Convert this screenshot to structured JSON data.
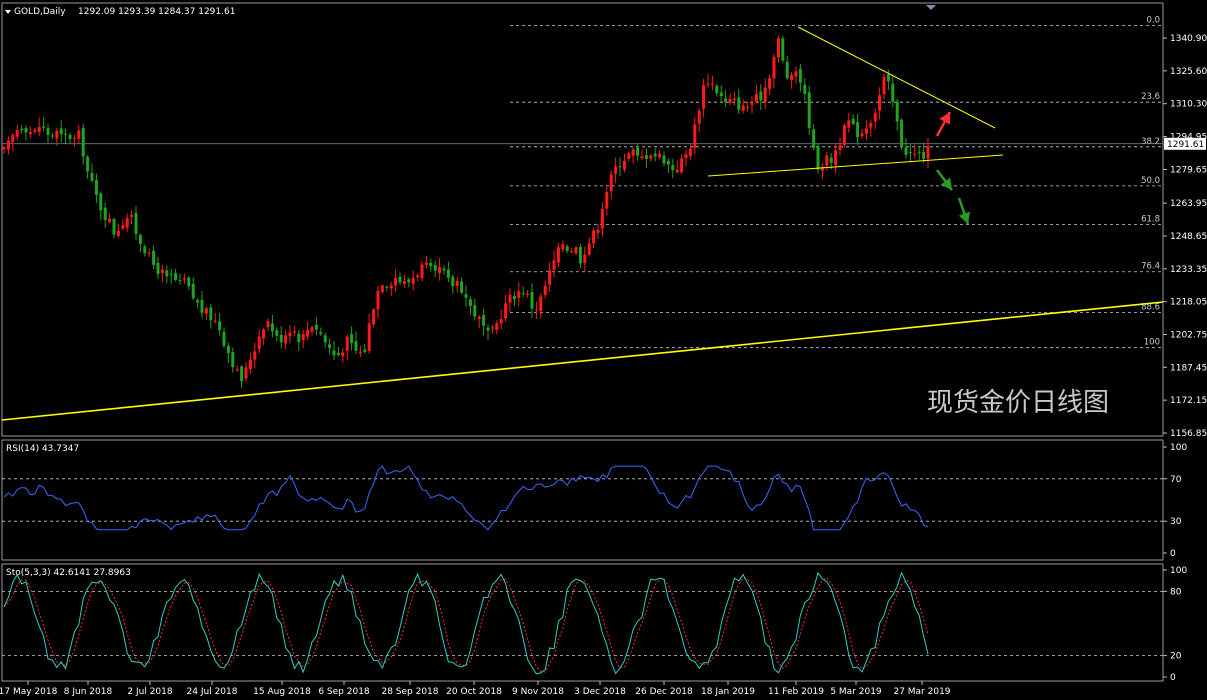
{
  "header": {
    "symbol_label": "GOLD,Daily",
    "ohlc_label": "1292.09 1293.39 1284.37 1291.61"
  },
  "rsi_panel": {
    "label": "RSI(14) 43.7347"
  },
  "sto_panel": {
    "label": "Sto(5,3,3) 42.6141 27.8963"
  },
  "watermark": "现货金价日线图",
  "colors": {
    "background": "#000000",
    "bull": "#ff1a1a",
    "bear": "#1fa51f",
    "trendline": "#ffff00",
    "rsi": "#3a67ff",
    "sto_main": "#2ad1c5",
    "sto_signal": "#ff2a2a",
    "arrow_up": "#ff3030",
    "arrow_down": "#2a9a2a"
  },
  "chart_data": [
    {
      "type": "candlestick",
      "title": "",
      "ylim": [
        1156.85,
        1351.0
      ],
      "y_ticks": [
        "1340.90",
        "1325.60",
        "1310.30",
        "1294.95",
        "1279.65",
        "1263.95",
        "1248.65",
        "1233.35",
        "1218.05",
        "1202.75",
        "1187.45",
        "1172.15",
        "1156.85"
      ],
      "x_ticks": [
        "17 May 2018",
        "8 Jun 2018",
        "2 Jul 2018",
        "24 Jul 2018",
        "15 Aug 2018",
        "6 Sep 2018",
        "28 Sep 2018",
        "20 Oct 2018",
        "9 Nov 2018",
        "3 Dec 2018",
        "26 Dec 2018",
        "18 Jan 2019",
        "11 Feb 2019",
        "5 Mar 2019",
        "27 Mar 2019"
      ],
      "current_price": "1291.61",
      "fibonacci_levels": [
        {
          "label": "0.0",
          "price": 1346.8
        },
        {
          "label": "23.6",
          "price": 1311.0
        },
        {
          "label": "38.2",
          "price": 1290.2
        },
        {
          "label": "50.0",
          "price": 1272.0
        },
        {
          "label": "61.8",
          "price": 1254.0
        },
        {
          "label": "76.4",
          "price": 1232.0
        },
        {
          "label": "88.6",
          "price": 1213.0
        },
        {
          "label": "100",
          "price": 1196.6
        }
      ],
      "close_path": [
        [
          0,
          1288
        ],
        [
          5,
          1292
        ],
        [
          10,
          1298
        ],
        [
          15,
          1300
        ],
        [
          20,
          1299
        ],
        [
          25,
          1296
        ],
        [
          30,
          1300
        ],
        [
          35,
          1298
        ],
        [
          40,
          1295
        ],
        [
          45,
          1297
        ],
        [
          50,
          1294
        ],
        [
          55,
          1296
        ],
        [
          60,
          1293
        ],
        [
          63,
          1298
        ],
        [
          68,
          1288
        ],
        [
          72,
          1278
        ],
        [
          76,
          1272
        ],
        [
          80,
          1266
        ],
        [
          85,
          1260
        ],
        [
          90,
          1256
        ],
        [
          95,
          1250
        ],
        [
          100,
          1254
        ],
        [
          105,
          1258
        ],
        [
          110,
          1256
        ],
        [
          115,
          1248
        ],
        [
          120,
          1244
        ],
        [
          125,
          1238
        ],
        [
          130,
          1234
        ],
        [
          135,
          1232
        ],
        [
          140,
          1228
        ],
        [
          145,
          1230
        ],
        [
          150,
          1225
        ],
        [
          155,
          1228
        ],
        [
          160,
          1222
        ],
        [
          165,
          1218
        ],
        [
          170,
          1214
        ],
        [
          175,
          1212
        ],
        [
          180,
          1210
        ],
        [
          185,
          1206
        ],
        [
          190,
          1198
        ],
        [
          195,
          1192
        ],
        [
          200,
          1185
        ],
        [
          205,
          1181
        ],
        [
          210,
          1190
        ],
        [
          215,
          1196
        ],
        [
          220,
          1204
        ],
        [
          225,
          1210
        ],
        [
          230,
          1206
        ],
        [
          235,
          1200
        ],
        [
          240,
          1202
        ],
        [
          245,
          1206
        ],
        [
          250,
          1204
        ],
        [
          255,
          1200
        ],
        [
          260,
          1205
        ],
        [
          265,
          1208
        ],
        [
          270,
          1205
        ],
        [
          275,
          1200
        ],
        [
          280,
          1196
        ],
        [
          285,
          1192
        ],
        [
          290,
          1196
        ],
        [
          295,
          1200
        ],
        [
          300,
          1196
        ],
        [
          305,
          1194
        ],
        [
          310,
          1196
        ],
        [
          315,
          1212
        ],
        [
          320,
          1222
        ],
        [
          325,
          1228
        ],
        [
          330,
          1226
        ],
        [
          335,
          1230
        ],
        [
          340,
          1228
        ],
        [
          345,
          1226
        ],
        [
          350,
          1229
        ],
        [
          355,
          1232
        ],
        [
          360,
          1235
        ],
        [
          365,
          1233
        ],
        [
          370,
          1230
        ],
        [
          375,
          1234
        ],
        [
          380,
          1228
        ],
        [
          385,
          1226
        ],
        [
          390,
          1228
        ],
        [
          395,
          1222
        ],
        [
          400,
          1216
        ],
        [
          405,
          1212
        ],
        [
          410,
          1208
        ],
        [
          415,
          1202
        ],
        [
          420,
          1204
        ],
        [
          425,
          1210
        ],
        [
          430,
          1216
        ],
        [
          435,
          1220
        ],
        [
          440,
          1222
        ],
        [
          445,
          1224
        ],
        [
          450,
          1220
        ],
        [
          455,
          1214
        ],
        [
          460,
          1218
        ],
        [
          465,
          1226
        ],
        [
          470,
          1234
        ],
        [
          475,
          1240
        ],
        [
          480,
          1246
        ],
        [
          485,
          1242
        ],
        [
          490,
          1244
        ],
        [
          495,
          1238
        ],
        [
          500,
          1244
        ],
        [
          505,
          1248
        ],
        [
          510,
          1254
        ],
        [
          515,
          1266
        ],
        [
          520,
          1274
        ],
        [
          525,
          1280
        ],
        [
          530,
          1284
        ],
        [
          535,
          1286
        ],
        [
          540,
          1288
        ],
        [
          545,
          1284
        ],
        [
          550,
          1286
        ],
        [
          555,
          1288
        ],
        [
          560,
          1286
        ],
        [
          565,
          1286
        ],
        [
          570,
          1282
        ],
        [
          575,
          1280
        ],
        [
          580,
          1282
        ],
        [
          585,
          1286
        ],
        [
          590,
          1292
        ],
        [
          595,
          1304
        ],
        [
          600,
          1318
        ],
        [
          605,
          1322
        ],
        [
          610,
          1318
        ],
        [
          615,
          1314
        ],
        [
          620,
          1310
        ],
        [
          625,
          1312
        ],
        [
          630,
          1310
        ],
        [
          635,
          1308
        ],
        [
          640,
          1310
        ],
        [
          645,
          1312
        ],
        [
          650,
          1314
        ],
        [
          655,
          1320
        ],
        [
          660,
          1330
        ],
        [
          665,
          1340
        ],
        [
          670,
          1326
        ],
        [
          675,
          1320
        ],
        [
          680,
          1326
        ],
        [
          685,
          1320
        ],
        [
          690,
          1306
        ],
        [
          695,
          1288
        ],
        [
          700,
          1280
        ],
        [
          705,
          1284
        ],
        [
          710,
          1284
        ],
        [
          715,
          1290
        ],
        [
          720,
          1296
        ],
        [
          725,
          1302
        ],
        [
          730,
          1298
        ],
        [
          735,
          1296
        ],
        [
          740,
          1300
        ],
        [
          745,
          1304
        ],
        [
          750,
          1310
        ],
        [
          755,
          1322
        ],
        [
          760,
          1318
        ],
        [
          765,
          1306
        ],
        [
          770,
          1292
        ],
        [
          775,
          1288
        ],
        [
          780,
          1286
        ],
        [
          785,
          1287
        ],
        [
          790,
          1286
        ],
        [
          795,
          1290
        ]
      ]
    },
    {
      "type": "line",
      "title": "RSI(14) 43.7347",
      "ylim": [
        0,
        100
      ],
      "levels": [
        30,
        70
      ],
      "y_ticks": [
        "100",
        "70",
        "30",
        "0"
      ]
    },
    {
      "type": "line",
      "title": "Sto(5,3,3) 42.6141 27.8963",
      "ylim": [
        0,
        100
      ],
      "levels": [
        20,
        80
      ],
      "y_ticks": [
        "100",
        "80",
        "20",
        "0"
      ]
    }
  ]
}
